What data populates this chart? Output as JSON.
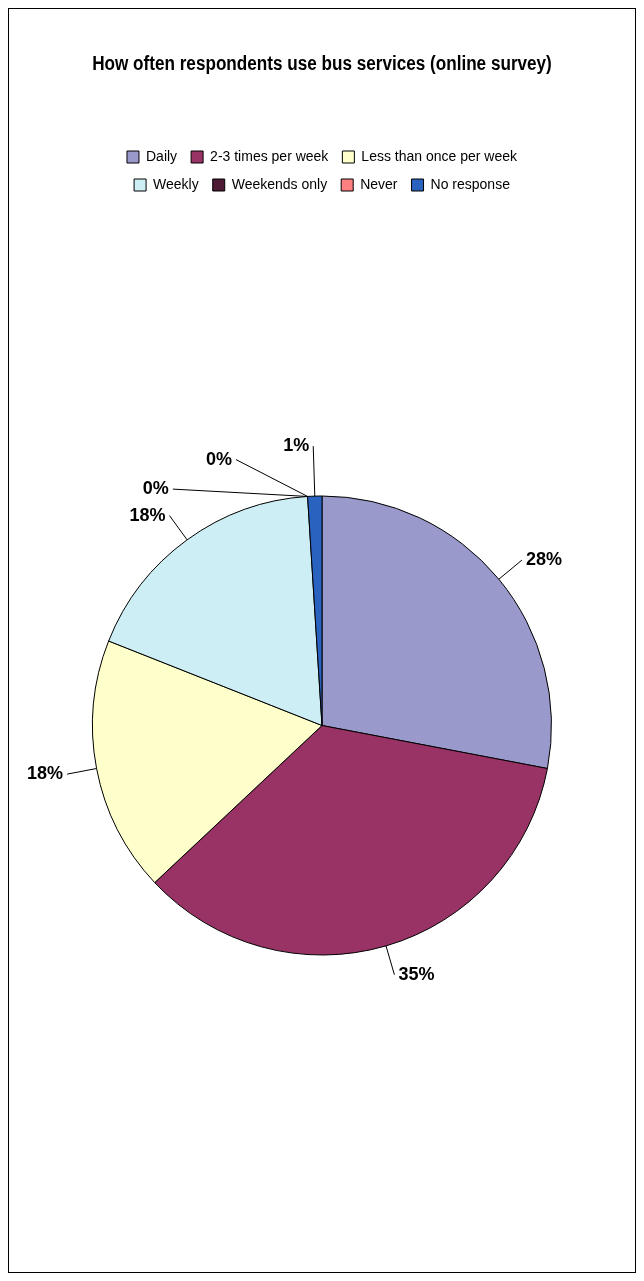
{
  "chart_data": {
    "type": "pie",
    "title": "How often respondents use bus services (online survey)",
    "categories": [
      "Daily",
      "2-3 times per week",
      "Less than once per week",
      "Weekly",
      "Weekends only",
      "Never",
      "No response"
    ],
    "values": [
      28,
      35,
      18,
      18,
      0,
      0,
      1
    ],
    "colors": [
      "#9999cc",
      "#993366",
      "#ffffcc",
      "#cceef4",
      "#4f1a33",
      "#ff8080",
      "#2a62c0"
    ],
    "value_labels": [
      "28%",
      "35%",
      "18%",
      "18%",
      "0%",
      "0%",
      "1%"
    ],
    "legend": "top"
  }
}
